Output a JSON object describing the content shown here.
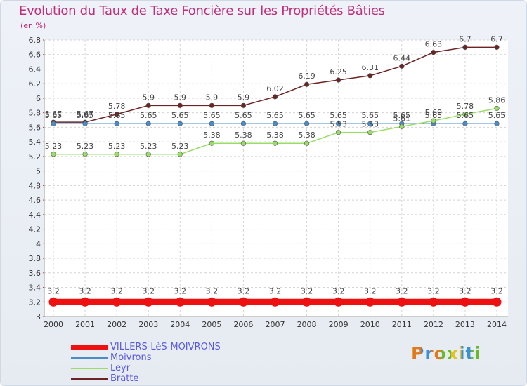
{
  "chart_data": {
    "type": "line",
    "title": "Evolution du Taux de Taxe Foncière sur les Propriétés Bâties",
    "unit_label": "(en %)",
    "categories": [
      "2000",
      "2001",
      "2002",
      "2003",
      "2004",
      "2005",
      "2006",
      "2007",
      "2008",
      "2009",
      "2010",
      "2011",
      "2012",
      "2013",
      "2014"
    ],
    "yticks": [
      "3",
      "3.2",
      "3.4",
      "3.6",
      "3.8",
      "4",
      "4.2",
      "4.4",
      "4.6",
      "4.8",
      "5",
      "5.2",
      "5.4",
      "5.6",
      "5.8",
      "6",
      "6.2",
      "6.4",
      "6.6",
      "6.8"
    ],
    "ylim": [
      3,
      6.8
    ],
    "grid": true,
    "series": [
      {
        "name": "Bratte",
        "color": "#6b2323",
        "marker": "#6b2323",
        "values": [
          5.67,
          5.67,
          5.78,
          5.9,
          5.9,
          5.9,
          5.9,
          6.02,
          6.19,
          6.25,
          6.31,
          6.44,
          6.63,
          6.7,
          6.7
        ],
        "labels": [
          "5.67",
          "5.67",
          "5.78",
          "5.9",
          "5.9",
          "5.9",
          "5.9",
          "6.02",
          "6.19",
          "6.25",
          "6.31",
          "6.44",
          "6.63",
          "6.7",
          "6.7"
        ]
      },
      {
        "name": "Moivrons",
        "color": "#4a8cc8",
        "marker": "#4a8cc8",
        "values": [
          5.65,
          5.65,
          5.65,
          5.65,
          5.65,
          5.65,
          5.65,
          5.65,
          5.65,
          5.65,
          5.65,
          5.65,
          5.65,
          5.65,
          5.65
        ],
        "labels": [
          "5.65",
          "5.65",
          "5.65",
          "5.65",
          "5.65",
          "5.65",
          "5.65",
          "5.65",
          "5.65",
          "5.65",
          "5.65",
          "5.65",
          "5.65",
          "5.65",
          "5.65"
        ]
      },
      {
        "name": "Leyr",
        "color": "#99dd66",
        "marker": "#99dd66",
        "values": [
          5.23,
          5.23,
          5.23,
          5.23,
          5.23,
          5.38,
          5.38,
          5.38,
          5.38,
          5.53,
          5.53,
          5.61,
          5.69,
          5.78,
          5.86
        ],
        "labels": [
          "5.23",
          "5.23",
          "5.23",
          "5.23",
          "5.23",
          "5.38",
          "5.38",
          "5.38",
          "5.38",
          "5.53",
          "5.53",
          "5.61",
          "5.69",
          "5.78",
          "5.86"
        ]
      },
      {
        "name": "VILLERS-LèS-MOIVRONS",
        "color": "#ee1111",
        "marker": "#ee1111",
        "values": [
          3.2,
          3.2,
          3.2,
          3.2,
          3.2,
          3.2,
          3.2,
          3.2,
          3.2,
          3.2,
          3.2,
          3.2,
          3.2,
          3.2,
          3.2
        ],
        "labels": [
          "3.2",
          "3.2",
          "3.2",
          "3.2",
          "3.2",
          "3.2",
          "3.2",
          "3.2",
          "3.2",
          "3.2",
          "3.2",
          "3.2",
          "3.2",
          "3.2",
          "3.2"
        ]
      }
    ]
  },
  "legend": [
    {
      "name": "VILLERS-LèS-MOIVRONS",
      "color": "#ee1111",
      "thick": true
    },
    {
      "name": "Moivrons",
      "color": "#4a8cc8",
      "thick": false
    },
    {
      "name": "Leyr",
      "color": "#99dd66",
      "thick": false
    },
    {
      "name": "Bratte",
      "color": "#6b2323",
      "thick": false
    }
  ],
  "logo": {
    "text": "Proxiti",
    "colors": [
      "#e07a1a",
      "#3a8fd6",
      "#e07a1a",
      "#6ab82e",
      "#e0c21a",
      "#3a8fd6",
      "#6ab82e"
    ]
  }
}
